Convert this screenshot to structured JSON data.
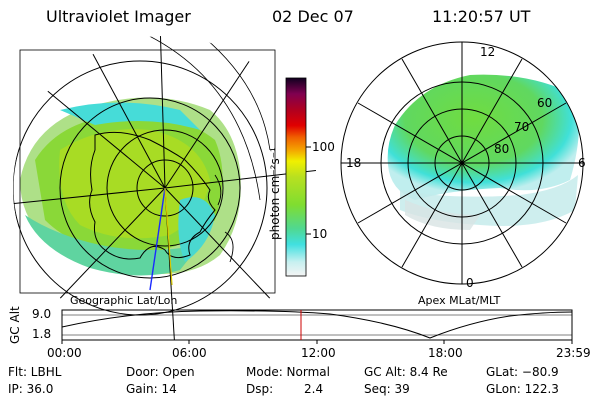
{
  "header": {
    "instrument": "Ultraviolet Imager",
    "date": "02 Dec 07",
    "time": "11:20:57 UT"
  },
  "geo_panel": {
    "caption": "Geographic Lat/Lon"
  },
  "mag_panel": {
    "caption": "Apex MLat/MLT",
    "mlt_labels": {
      "top": "12",
      "left": "18",
      "right": "6",
      "bottom": "0"
    },
    "lat_labels": [
      "60",
      "70",
      "80"
    ]
  },
  "colorbar": {
    "unit_label": "photon cm⁻²s⁻¹",
    "ticks": [
      "100",
      "10"
    ],
    "scale": "log",
    "colors": [
      "#f4f4f4",
      "#c8f0f0",
      "#40e0e0",
      "#50d890",
      "#80dd30",
      "#b8e020",
      "#f0f000",
      "#f4a000",
      "#f06000",
      "#e00000",
      "#b00020",
      "#800050",
      "#500060",
      "#100020"
    ]
  },
  "orbit_plot": {
    "ylabel": "GC Alt",
    "ytick_top": "9.0",
    "ytick_bottom": "1.8",
    "xticks": [
      "00:00",
      "06:00",
      "12:00",
      "18:00",
      "23:59"
    ],
    "marker_color": "#cc0000"
  },
  "info": {
    "flt": "Flt: LBHL",
    "ip": "IP: 36.0",
    "door": "Door: Open",
    "gain": "Gain: 14",
    "mode": "Mode: Normal",
    "dsp_label": "Dsp:",
    "dsp_value": "2.4",
    "gc_alt": "GC Alt: 8.4 Re",
    "seq": "Seq: 39",
    "glat": "GLat: −80.9",
    "glon": "GLon: 122.3"
  }
}
